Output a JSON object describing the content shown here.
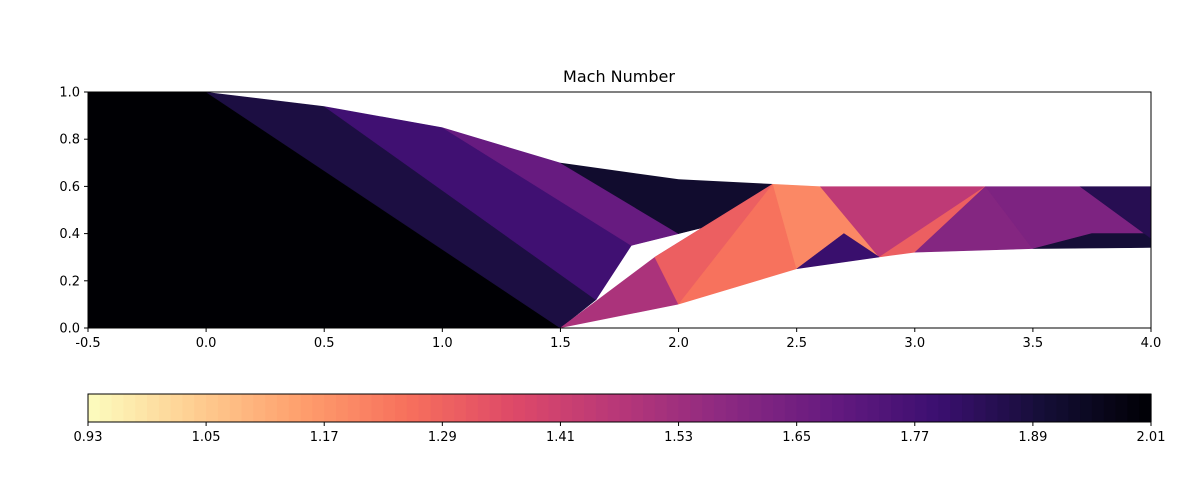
{
  "chart_data": {
    "type": "heatmap",
    "title": "Mach Number",
    "xlabel": "",
    "ylabel": "",
    "xlim": [
      -0.5,
      4.0
    ],
    "ylim": [
      0.0,
      1.0
    ],
    "grid": false,
    "x_ticks": [
      "-0.5",
      "0.0",
      "0.5",
      "1.0",
      "1.5",
      "2.0",
      "2.5",
      "3.0",
      "3.5",
      "4.0"
    ],
    "y_ticks": [
      "0.0",
      "0.2",
      "0.4",
      "0.6",
      "0.8",
      "1.0"
    ],
    "upper_wall": [
      [
        -0.5,
        1.0
      ],
      [
        0.0,
        1.0
      ],
      [
        0.5,
        0.94
      ],
      [
        1.0,
        0.85
      ],
      [
        1.5,
        0.7
      ],
      [
        2.0,
        0.63
      ],
      [
        2.4,
        0.61
      ],
      [
        2.6,
        0.6
      ],
      [
        4.0,
        0.6
      ]
    ],
    "lower_wall": [
      [
        -0.5,
        0.0
      ],
      [
        1.5,
        0.0
      ],
      [
        2.0,
        0.1
      ],
      [
        2.5,
        0.25
      ],
      [
        2.85,
        0.3
      ],
      [
        3.0,
        0.32
      ],
      [
        3.5,
        0.335
      ],
      [
        4.0,
        0.34
      ]
    ],
    "regions": [
      {
        "polygon": [
          [
            -0.5,
            0.0
          ],
          [
            1.5,
            0.0
          ],
          [
            0.0,
            1.0
          ],
          [
            -0.5,
            1.0
          ]
        ],
        "mach": 2.01
      },
      {
        "polygon": [
          [
            0.0,
            1.0
          ],
          [
            0.5,
            0.94
          ],
          [
            1.65,
            0.12
          ],
          [
            1.5,
            0.0
          ]
        ],
        "mach": 1.88
      },
      {
        "polygon": [
          [
            0.5,
            0.94
          ],
          [
            1.0,
            0.85
          ],
          [
            1.8,
            0.35
          ],
          [
            1.65,
            0.12
          ]
        ],
        "mach": 1.78
      },
      {
        "polygon": [
          [
            1.0,
            0.85
          ],
          [
            1.5,
            0.7
          ],
          [
            2.0,
            0.4
          ],
          [
            1.8,
            0.35
          ]
        ],
        "mach": 1.68
      },
      {
        "polygon": [
          [
            1.5,
            0.7
          ],
          [
            2.4,
            0.61
          ],
          [
            2.2,
            0.45
          ],
          [
            2.0,
            0.4
          ]
        ],
        "mach": 1.92
      },
      {
        "polygon": [
          [
            1.5,
            0.0
          ],
          [
            2.0,
            0.1
          ],
          [
            2.4,
            0.61
          ],
          [
            1.9,
            0.3
          ]
        ],
        "mach": 1.5
      },
      {
        "polygon": [
          [
            1.9,
            0.3
          ],
          [
            2.4,
            0.61
          ],
          [
            2.0,
            0.1
          ]
        ],
        "mach": 1.3
      },
      {
        "polygon": [
          [
            2.0,
            0.1
          ],
          [
            2.5,
            0.25
          ],
          [
            2.4,
            0.61
          ]
        ],
        "mach": 1.25
      },
      {
        "polygon": [
          [
            2.4,
            0.61
          ],
          [
            2.6,
            0.6
          ],
          [
            2.85,
            0.3
          ],
          [
            2.5,
            0.25
          ]
        ],
        "mach": 1.2
      },
      {
        "polygon": [
          [
            2.6,
            0.6
          ],
          [
            3.3,
            0.6
          ],
          [
            2.85,
            0.3
          ]
        ],
        "mach": 1.45
      },
      {
        "polygon": [
          [
            2.5,
            0.25
          ],
          [
            2.85,
            0.3
          ],
          [
            2.7,
            0.4
          ]
        ],
        "mach": 1.8
      },
      {
        "polygon": [
          [
            2.85,
            0.3
          ],
          [
            3.0,
            0.32
          ],
          [
            3.3,
            0.6
          ]
        ],
        "mach": 1.3
      },
      {
        "polygon": [
          [
            3.0,
            0.32
          ],
          [
            3.5,
            0.335
          ],
          [
            3.3,
            0.6
          ]
        ],
        "mach": 1.6
      },
      {
        "polygon": [
          [
            3.3,
            0.6
          ],
          [
            4.0,
            0.6
          ],
          [
            4.0,
            0.4
          ],
          [
            3.5,
            0.335
          ]
        ],
        "mach": 1.62
      },
      {
        "polygon": [
          [
            3.5,
            0.335
          ],
          [
            4.0,
            0.34
          ],
          [
            4.0,
            0.4
          ],
          [
            3.75,
            0.4
          ]
        ],
        "mach": 1.9
      },
      {
        "polygon": [
          [
            3.7,
            0.6
          ],
          [
            4.0,
            0.6
          ],
          [
            4.0,
            0.38
          ]
        ],
        "mach": 1.85
      }
    ],
    "colorbar": {
      "colormap": "magma_r",
      "min": 0.93,
      "max": 2.01,
      "levels": 90,
      "ticks": [
        "0.93",
        "1.05",
        "1.17",
        "1.29",
        "1.41",
        "1.53",
        "1.65",
        "1.77",
        "1.89",
        "2.01"
      ],
      "placement": "bottom"
    }
  }
}
